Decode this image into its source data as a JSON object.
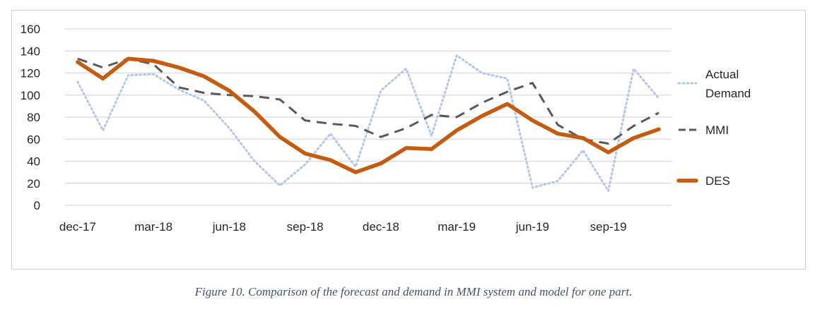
{
  "caption": "Figure 10. Comparison of the forecast and demand in MMI system and model for one part.",
  "chart_data": {
    "type": "line",
    "title": "",
    "xlabel": "",
    "ylabel": "",
    "ylim": [
      0,
      160
    ],
    "yticks": [
      0,
      20,
      40,
      60,
      80,
      100,
      120,
      140,
      160
    ],
    "grid": true,
    "legend_position": "right",
    "x": [
      "dec-17",
      "jan-18",
      "feb-18",
      "mar-18",
      "apr-18",
      "may-18",
      "jun-18",
      "jul-18",
      "aug-18",
      "sep-18",
      "oct-18",
      "nov-18",
      "dec-18",
      "jan-19",
      "feb-19",
      "mar-19",
      "apr-19",
      "may-19",
      "jun-19",
      "jul-19",
      "aug-19",
      "sep-19",
      "oct-19",
      "nov-19"
    ],
    "xtick_labels": [
      "dec-17",
      "mar-18",
      "jun-18",
      "sep-18",
      "dec-18",
      "mar-19",
      "jun-19",
      "sep-19"
    ],
    "xtick_indices": [
      0,
      3,
      6,
      9,
      12,
      15,
      18,
      21
    ],
    "series": [
      {
        "name": "Actual Demand",
        "color": "#b4c7e7",
        "style": "dotted",
        "values": [
          112,
          68,
          118,
          119,
          105,
          95,
          70,
          40,
          18,
          37,
          65,
          35,
          104,
          124,
          63,
          136,
          120,
          115,
          16,
          22,
          50,
          13,
          124,
          97
        ]
      },
      {
        "name": "MMI",
        "color": "#595959",
        "style": "dashed",
        "values": [
          133,
          125,
          133,
          128,
          107,
          102,
          100,
          99,
          96,
          77,
          74,
          72,
          62,
          70,
          82,
          80,
          93,
          103,
          111,
          73,
          60,
          56,
          72,
          84
        ]
      },
      {
        "name": "DES",
        "color": "#c55a11",
        "style": "solid",
        "values": [
          130,
          115,
          133,
          131,
          125,
          117,
          104,
          85,
          62,
          47,
          41,
          30,
          38,
          52,
          51,
          68,
          81,
          92,
          77,
          65,
          61,
          48,
          61,
          69
        ]
      }
    ],
    "legend": [
      "Actual Demand",
      "MMI",
      "DES"
    ],
    "legend_lines": [
      [
        "Actual",
        "Demand"
      ],
      [
        "MMI"
      ],
      [
        "DES"
      ]
    ]
  }
}
